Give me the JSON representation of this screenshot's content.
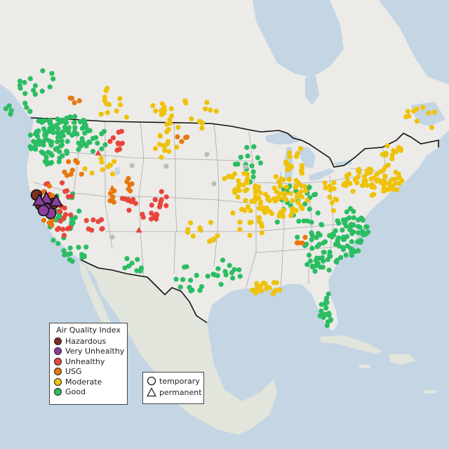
{
  "legend": {
    "title": "Air Quality Index",
    "categories": [
      {
        "label": "Hazardous",
        "color": "#7e2e22"
      },
      {
        "label": "Very Unhealthy",
        "color": "#8a3f9e"
      },
      {
        "label": "Unhealthy",
        "color": "#e8453c"
      },
      {
        "label": "USG",
        "color": "#e8770d"
      },
      {
        "label": "Moderate",
        "color": "#efc20a"
      },
      {
        "label": "Good",
        "color": "#2bbd63"
      }
    ],
    "types": [
      {
        "label": "temporary",
        "shape": "circle"
      },
      {
        "label": "permanent",
        "shape": "triangle"
      }
    ]
  },
  "colors": {
    "ocean": "#c4d5e3",
    "land": "#ecebe8",
    "mexico": "#e2e5dc",
    "state_border": "#a9a9a9",
    "country_border": "#111111",
    "missing": "#bcbcbc"
  }
}
